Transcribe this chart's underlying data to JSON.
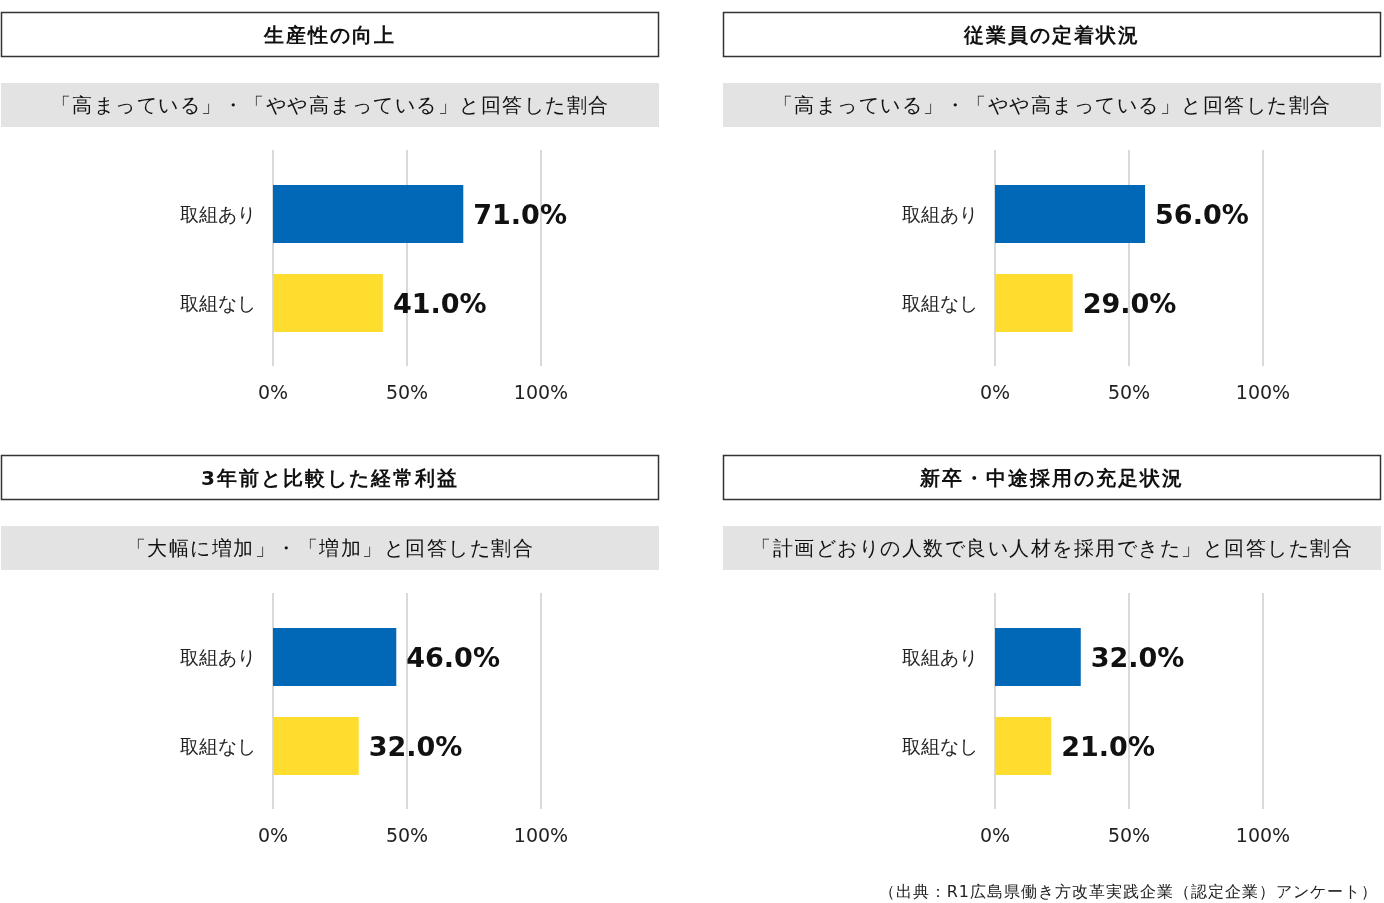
{
  "chart_data": [
    {
      "type": "bar",
      "orientation": "horizontal",
      "title": "生産性の向上",
      "subtitle": "「高まっている」・「やや高まっている」と回答した割合",
      "categories": [
        "取組あり",
        "取組なし"
      ],
      "values": [
        71.0,
        41.0
      ],
      "colors": [
        "#0068b7",
        "#ffdd2e"
      ],
      "value_labels": [
        "71.0%",
        "41.0%"
      ],
      "xlim": [
        0,
        100
      ],
      "xticks": [
        {
          "value": 0,
          "label": "0%"
        },
        {
          "value": 50,
          "label": "50%"
        },
        {
          "value": 100,
          "label": "100%"
        }
      ],
      "grid": "x"
    },
    {
      "type": "bar",
      "orientation": "horizontal",
      "title": "従業員の定着状況",
      "subtitle": "「高まっている」・「やや高まっている」と回答した割合",
      "categories": [
        "取組あり",
        "取組なし"
      ],
      "values": [
        56.0,
        29.0
      ],
      "colors": [
        "#0068b7",
        "#ffdd2e"
      ],
      "value_labels": [
        "56.0%",
        "29.0%"
      ],
      "xlim": [
        0,
        100
      ],
      "xticks": [
        {
          "value": 0,
          "label": "0%"
        },
        {
          "value": 50,
          "label": "50%"
        },
        {
          "value": 100,
          "label": "100%"
        }
      ],
      "grid": "x"
    },
    {
      "type": "bar",
      "orientation": "horizontal",
      "title": "3年前と比較した経常利益",
      "subtitle": "「大幅に増加」・「増加」と回答した割合",
      "categories": [
        "取組あり",
        "取組なし"
      ],
      "values": [
        46.0,
        32.0
      ],
      "colors": [
        "#0068b7",
        "#ffdd2e"
      ],
      "value_labels": [
        "46.0%",
        "32.0%"
      ],
      "xlim": [
        0,
        100
      ],
      "xticks": [
        {
          "value": 0,
          "label": "0%"
        },
        {
          "value": 50,
          "label": "50%"
        },
        {
          "value": 100,
          "label": "100%"
        }
      ],
      "grid": "x"
    },
    {
      "type": "bar",
      "orientation": "horizontal",
      "title": "新卒・中途採用の充足状況",
      "subtitle": "「計画どおりの人数で良い人材を採用できた」と回答した割合",
      "categories": [
        "取組あり",
        "取組なし"
      ],
      "values": [
        32.0,
        21.0
      ],
      "colors": [
        "#0068b7",
        "#ffdd2e"
      ],
      "value_labels": [
        "32.0%",
        "21.0%"
      ],
      "xlim": [
        0,
        100
      ],
      "xticks": [
        {
          "value": 0,
          "label": "0%"
        },
        {
          "value": 50,
          "label": "50%"
        },
        {
          "value": 100,
          "label": "100%"
        }
      ],
      "grid": "x",
      "annotations": [
        "（出典：R1広島県働き方改革実践企業（認定企業）アンケート）"
      ]
    }
  ]
}
